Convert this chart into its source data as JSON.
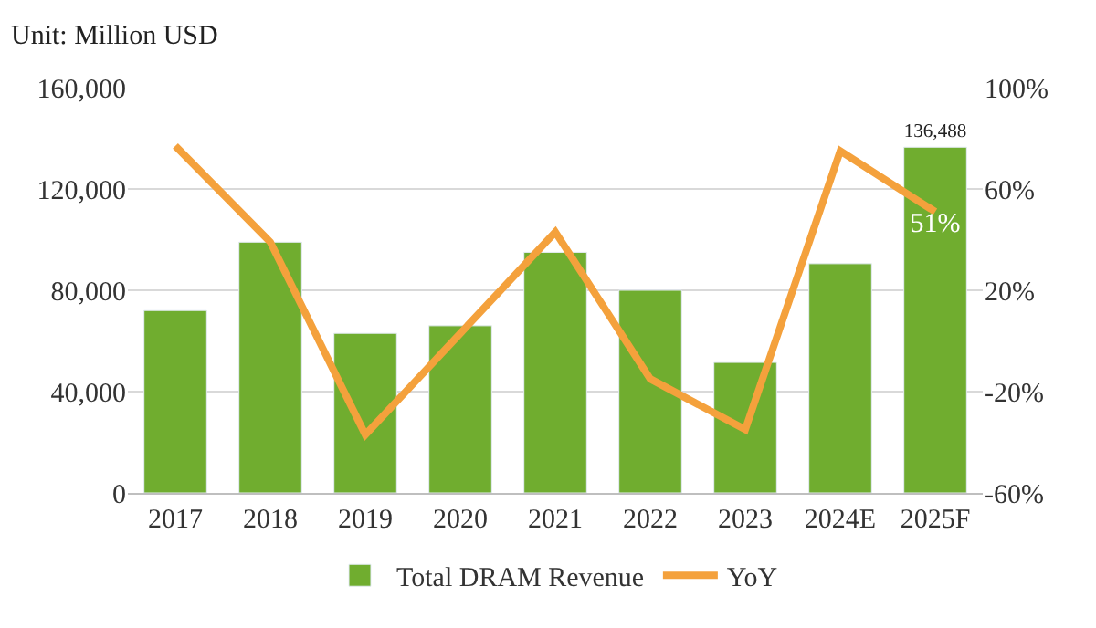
{
  "chart_data": {
    "type": "bar",
    "annotations": [
      "Unit: Million USD"
    ],
    "categories": [
      "2017",
      "2018",
      "2019",
      "2020",
      "2021",
      "2022",
      "2023",
      "2024E",
      "2025F"
    ],
    "series": [
      {
        "name": "Total DRAM Revenue",
        "color": "#70ad2f",
        "values": [
          72000,
          99000,
          63000,
          66000,
          95000,
          80000,
          51500,
          90500,
          136488
        ],
        "value_labels": [
          null,
          null,
          null,
          null,
          null,
          null,
          null,
          null,
          "136,488"
        ]
      },
      {
        "name": "YoY",
        "type": "line",
        "axis": "y2",
        "color": "#f4a13c",
        "values": [
          77,
          39,
          -37,
          3,
          43,
          -15,
          -35,
          75,
          51
        ],
        "value_labels": [
          null,
          null,
          null,
          null,
          null,
          null,
          null,
          null,
          "51%"
        ]
      }
    ],
    "ylim": [
      0,
      160000
    ],
    "yticks": [
      {
        "value": 0,
        "label": "0"
      },
      {
        "value": 40000,
        "label": "40,000"
      },
      {
        "value": 80000,
        "label": "80,000"
      },
      {
        "value": 120000,
        "label": "120,000"
      },
      {
        "value": 160000,
        "label": "160,000"
      }
    ],
    "y2lim": [
      -60,
      100
    ],
    "y2ticks": [
      {
        "value": -60,
        "label": "-60%"
      },
      {
        "value": -20,
        "label": "-20%"
      },
      {
        "value": 20,
        "label": "20%"
      },
      {
        "value": 60,
        "label": "60%"
      },
      {
        "value": 100,
        "label": "100%"
      }
    ],
    "grid": "y",
    "legend": "bottom",
    "marker": "none",
    "line_style": "solid"
  }
}
